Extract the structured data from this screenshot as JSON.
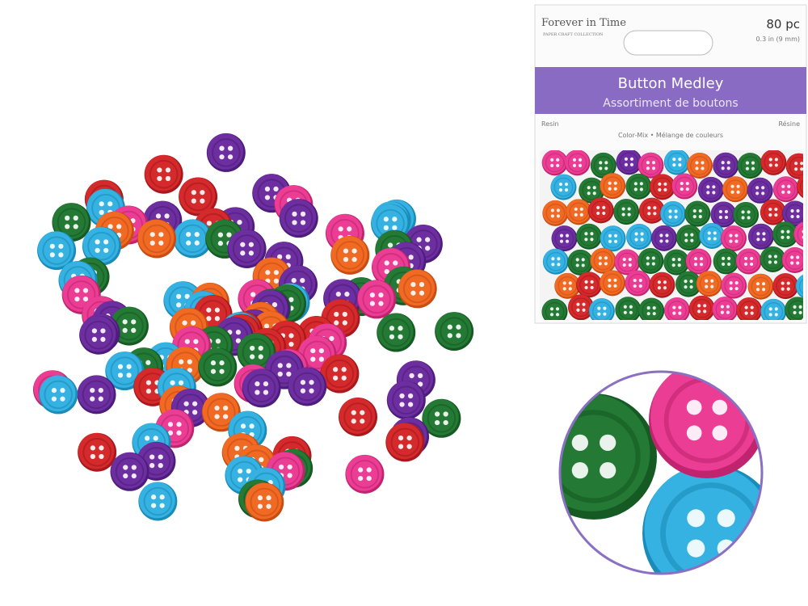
{
  "package": {
    "brand": "Forever in Time",
    "brand_sub": "PAPER CRAFT COLLECTION",
    "count": "80 pc",
    "size": "0.3 in (9 mm)",
    "title": "Button Medley",
    "title_fr": "Assortiment de boutons",
    "material": "Resin",
    "material_fr": "Résine",
    "variant": "Color-Mix • Mélange de couleurs"
  }
}
